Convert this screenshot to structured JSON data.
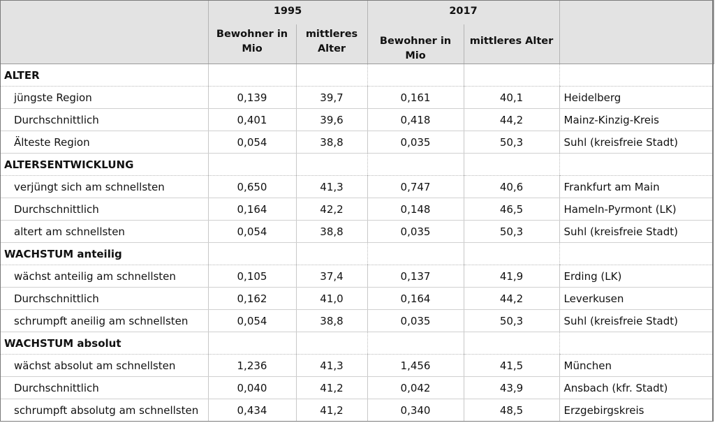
{
  "header": {
    "year_a": "1995",
    "year_b": "2017",
    "col_a1": "Bewohner in Mio",
    "col_a2": "mittleres Alter",
    "col_b1": "Bewohner in Mio",
    "col_b2": "mittleres Alter"
  },
  "sections": [
    {
      "title": "ALTER",
      "rows": [
        {
          "label": "jüngste Region",
          "pop1995": "0,139",
          "age1995": "39,7",
          "pop2017": "0,161",
          "age2017": "40,1",
          "region": "Heidelberg"
        },
        {
          "label": "Durchschnittlich",
          "pop1995": "0,401",
          "age1995": "39,6",
          "pop2017": "0,418",
          "age2017": "44,2",
          "region": "Mainz-Kinzig-Kreis"
        },
        {
          "label": "Älteste Region",
          "pop1995": "0,054",
          "age1995": "38,8",
          "pop2017": "0,035",
          "age2017": "50,3",
          "region": "Suhl (kreisfreie Stadt)"
        }
      ]
    },
    {
      "title": "ALTERSENTWICKLUNG",
      "rows": [
        {
          "label": "verjüngt sich am schnellsten",
          "pop1995": "0,650",
          "age1995": "41,3",
          "pop2017": "0,747",
          "age2017": "40,6",
          "region": "Frankfurt am Main"
        },
        {
          "label": "Durchschnittlich",
          "pop1995": "0,164",
          "age1995": "42,2",
          "pop2017": "0,148",
          "age2017": "46,5",
          "region": "Hameln-Pyrmont (LK)"
        },
        {
          "label": "altert am schnellsten",
          "pop1995": "0,054",
          "age1995": "38,8",
          "pop2017": "0,035",
          "age2017": "50,3",
          "region": "Suhl (kreisfreie Stadt)"
        }
      ]
    },
    {
      "title": "WACHSTUM anteilig",
      "rows": [
        {
          "label": "wächst anteilig am schnellsten",
          "pop1995": "0,105",
          "age1995": "37,4",
          "pop2017": "0,137",
          "age2017": "41,9",
          "region": "Erding (LK)"
        },
        {
          "label": "Durchschnittlich",
          "pop1995": "0,162",
          "age1995": "41,0",
          "pop2017": "0,164",
          "age2017": "44,2",
          "region": "Leverkusen"
        },
        {
          "label": "schrumpft aneilig am schnellsten",
          "pop1995": "0,054",
          "age1995": "38,8",
          "pop2017": "0,035",
          "age2017": "50,3",
          "region": "Suhl (kreisfreie Stadt)"
        }
      ]
    },
    {
      "title": "WACHSTUM absolut",
      "rows": [
        {
          "label": "wächst absolut am schnellsten",
          "pop1995": "1,236",
          "age1995": "41,3",
          "pop2017": "1,456",
          "age2017": "41,5",
          "region": "München"
        },
        {
          "label": "Durchschnittlich",
          "pop1995": "0,040",
          "age1995": "41,2",
          "pop2017": "0,042",
          "age2017": "43,9",
          "region": "Ansbach (kfr. Stadt)"
        },
        {
          "label": "schrumpft absolutg am schnellsten",
          "pop1995": "0,434",
          "age1995": "41,2",
          "pop2017": "0,340",
          "age2017": "48,5",
          "region": "Erzgebirgskreis"
        }
      ]
    }
  ]
}
